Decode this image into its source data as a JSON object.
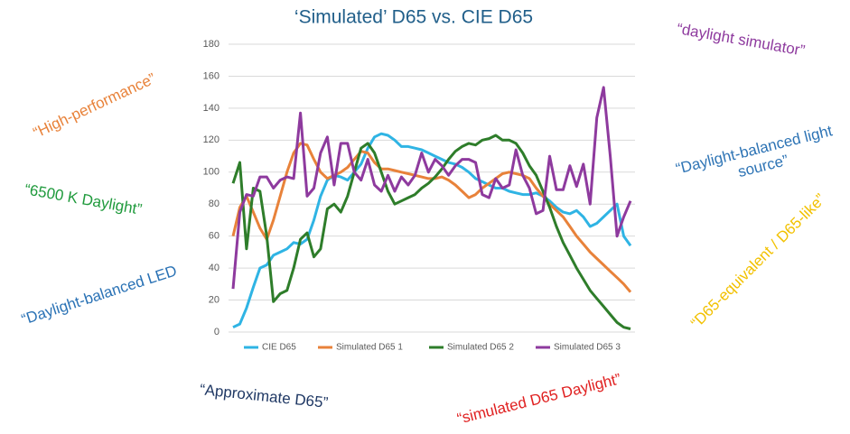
{
  "chart_data": {
    "type": "line",
    "title": "‘Simulated’ D65 vs. CIE D65",
    "categories": [
      null,
      null,
      null,
      null,
      null,
      null,
      null,
      null,
      null,
      null,
      null,
      null,
      null,
      null,
      null,
      null,
      null,
      null,
      null,
      null,
      null,
      null,
      null,
      null,
      null,
      null,
      null,
      null,
      null,
      null,
      null,
      null,
      null,
      null,
      null,
      null,
      null,
      null,
      null,
      null,
      null,
      null,
      null,
      null,
      null,
      null,
      null,
      null,
      null,
      null,
      null,
      null,
      null,
      null,
      null,
      null,
      null,
      null,
      null,
      null
    ],
    "series": [
      {
        "name": "CIE D65",
        "color": "#2fb4e4",
        "values": [
          3,
          5,
          15,
          28,
          40,
          42,
          48,
          50,
          52,
          56,
          55,
          58,
          70,
          85,
          95,
          98,
          97,
          95,
          100,
          105,
          115,
          122,
          124,
          123,
          120,
          116,
          116,
          115,
          114,
          112,
          110,
          108,
          106,
          105,
          103,
          100,
          96,
          94,
          92,
          90,
          90,
          88,
          87,
          86,
          86,
          87,
          85,
          82,
          78,
          75,
          74,
          76,
          72,
          66,
          68,
          72,
          76,
          80,
          60,
          54
        ]
      },
      {
        "name": "Simulated D65 1",
        "color": "#e8823a",
        "values": [
          60,
          78,
          85,
          75,
          65,
          58,
          70,
          85,
          100,
          112,
          118,
          117,
          108,
          100,
          96,
          98,
          100,
          103,
          108,
          113,
          112,
          106,
          102,
          102,
          101,
          100,
          99,
          98,
          97,
          96,
          96,
          97,
          95,
          92,
          88,
          84,
          86,
          90,
          93,
          96,
          99,
          100,
          99,
          98,
          96,
          90,
          85,
          80,
          76,
          72,
          66,
          60,
          55,
          50,
          46,
          42,
          38,
          34,
          30,
          25
        ]
      },
      {
        "name": "Simulated D65 2",
        "color": "#2e7d2a",
        "values": [
          93,
          106,
          52,
          90,
          88,
          60,
          19,
          24,
          26,
          40,
          58,
          62,
          47,
          52,
          77,
          80,
          75,
          85,
          100,
          115,
          118,
          112,
          100,
          88,
          80,
          82,
          84,
          86,
          90,
          93,
          97,
          102,
          108,
          113,
          116,
          118,
          117,
          120,
          121,
          123,
          120,
          120,
          118,
          112,
          104,
          98,
          88,
          78,
          66,
          56,
          48,
          40,
          33,
          26,
          21,
          16,
          11,
          6,
          3,
          2
        ]
      },
      {
        "name": "Simulated D65 3",
        "color": "#8e3a9e",
        "values": [
          27,
          75,
          86,
          85,
          97,
          97,
          90,
          95,
          97,
          96,
          137,
          85,
          90,
          112,
          122,
          92,
          118,
          118,
          100,
          95,
          108,
          92,
          88,
          98,
          88,
          97,
          92,
          98,
          112,
          100,
          108,
          104,
          98,
          104,
          108,
          108,
          106,
          86,
          84,
          96,
          90,
          92,
          114,
          98,
          90,
          74,
          76,
          110,
          89,
          89,
          104,
          91,
          105,
          80,
          134,
          153,
          110,
          60,
          72,
          82
        ]
      }
    ],
    "ylim": [
      0,
      180
    ],
    "yticks": [
      0,
      20,
      40,
      60,
      80,
      100,
      120,
      140,
      160,
      180
    ],
    "grid": true,
    "annotations": [
      "“High-performance”",
      "“6500 K Daylight”",
      "“Daylight-balanced LED",
      "“Approximate D65”",
      "“simulated D65 Daylight”",
      "“daylight simulator”",
      "“Daylight-balanced light",
      "source”",
      "“D65-equivalent / D65-like”"
    ]
  }
}
